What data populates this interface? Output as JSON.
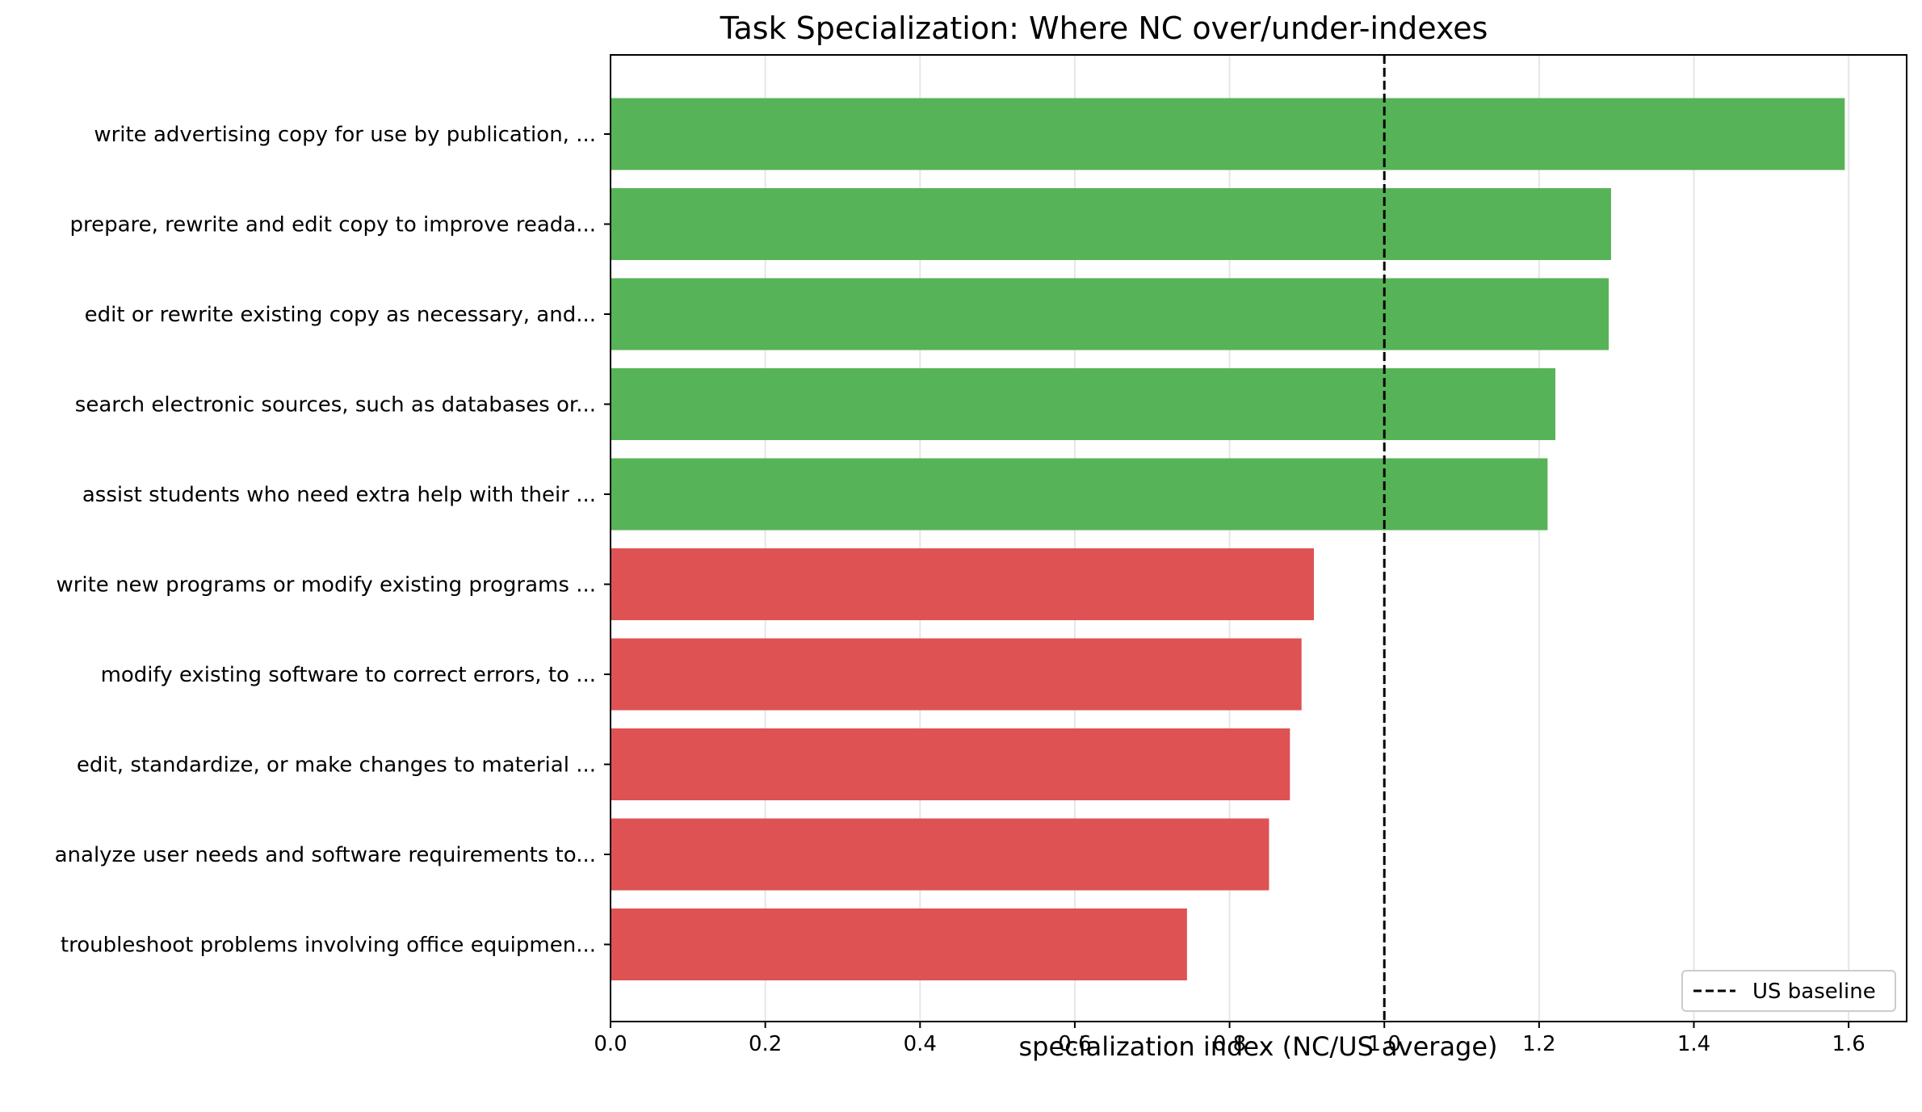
{
  "chart_data": {
    "type": "bar",
    "orientation": "horizontal",
    "title": "Task Specialization: Where NC over/under-indexes",
    "xlabel": "specialization index (NC/US average)",
    "ylabel": "",
    "xlim": [
      0,
      1.675
    ],
    "xticks": [
      0.0,
      0.2,
      0.4,
      0.6,
      0.8,
      1.0,
      1.2,
      1.4,
      1.6
    ],
    "xtick_labels": [
      "0.0",
      "0.2",
      "0.4",
      "0.6",
      "0.8",
      "1.0",
      "1.2",
      "1.4",
      "1.6"
    ],
    "grid": "vertical",
    "categories": [
      "write advertising copy for use by publication, ...",
      "prepare, rewrite and edit copy to improve reada...",
      "edit or rewrite existing copy as necessary, and...",
      "search electronic sources, such as databases or...",
      "assist students who need extra help with their ...",
      "write new programs or modify existing programs ...",
      "modify existing software to correct errors, to ...",
      "edit, standardize, or make changes to material ...",
      "analyze user needs and software requirements to...",
      "troubleshoot problems involving office equipmen..."
    ],
    "values": [
      1.595,
      1.293,
      1.29,
      1.221,
      1.211,
      0.909,
      0.893,
      0.878,
      0.851,
      0.745
    ],
    "colors": {
      "over": "#57b357",
      "under": "#de5254"
    },
    "reference_line": {
      "x": 1.0,
      "style": "dashed",
      "color": "#000000",
      "legend_label": "US baseline"
    },
    "legend": {
      "position": "lower-right",
      "entries": [
        "US baseline"
      ]
    }
  }
}
